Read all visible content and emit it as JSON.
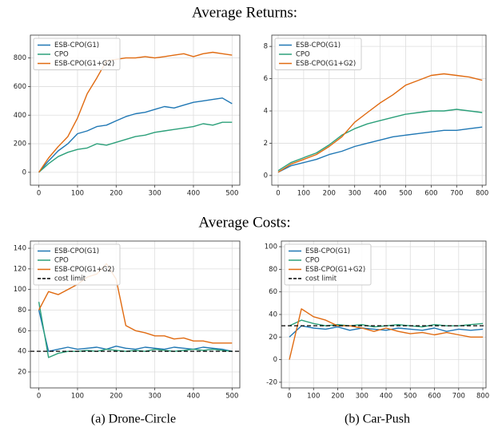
{
  "section_titles": [
    "Average Returns:",
    "Average Costs:"
  ],
  "captions": [
    "(a) Drone-Circle",
    "(b) Car-Push"
  ],
  "chart_data": [
    {
      "type": "line",
      "grid": true,
      "legend": "upper left",
      "x": [
        0,
        25,
        50,
        75,
        100,
        125,
        150,
        175,
        200,
        225,
        250,
        275,
        300,
        325,
        350,
        375,
        400,
        425,
        450,
        475,
        500
      ],
      "xlim": [
        -22,
        520
      ],
      "ylim": [
        -90,
        960
      ],
      "xticks": [
        0,
        100,
        200,
        300,
        400,
        500
      ],
      "yticks": [
        0,
        200,
        400,
        600,
        800
      ],
      "series": [
        {
          "name": "ESB-CPO(G1)",
          "color": "#1f77b4",
          "values": [
            0,
            80,
            150,
            200,
            270,
            290,
            320,
            330,
            360,
            390,
            410,
            420,
            440,
            460,
            450,
            470,
            490,
            500,
            510,
            520,
            480
          ]
        },
        {
          "name": "CPO",
          "color": "#2ca07a",
          "values": [
            0,
            60,
            110,
            140,
            160,
            170,
            200,
            190,
            210,
            230,
            250,
            260,
            280,
            290,
            300,
            310,
            320,
            340,
            330,
            350,
            350
          ]
        },
        {
          "name": "ESB-CPO(G1+G2)",
          "color": "#e06a10",
          "values": [
            0,
            100,
            180,
            250,
            380,
            550,
            660,
            780,
            790,
            800,
            800,
            810,
            800,
            810,
            820,
            830,
            810,
            830,
            840,
            830,
            820
          ]
        }
      ]
    },
    {
      "type": "line",
      "grid": true,
      "legend": "upper left",
      "x": [
        0,
        50,
        100,
        150,
        200,
        250,
        300,
        350,
        400,
        450,
        500,
        550,
        600,
        650,
        700,
        750,
        800
      ],
      "xlim": [
        -25,
        815
      ],
      "ylim": [
        -0.6,
        8.7
      ],
      "xticks": [
        0,
        100,
        200,
        300,
        400,
        500,
        600,
        700,
        800
      ],
      "yticks": [
        0,
        2,
        4,
        6,
        8
      ],
      "series": [
        {
          "name": "ESB-CPO(G1)",
          "color": "#1f77b4",
          "values": [
            0.2,
            0.6,
            0.8,
            1.0,
            1.3,
            1.5,
            1.8,
            2.0,
            2.2,
            2.4,
            2.5,
            2.6,
            2.7,
            2.8,
            2.8,
            2.9,
            3.0
          ]
        },
        {
          "name": "CPO",
          "color": "#2ca07a",
          "values": [
            0.3,
            0.8,
            1.1,
            1.4,
            1.9,
            2.5,
            2.9,
            3.2,
            3.4,
            3.6,
            3.8,
            3.9,
            4.0,
            4.0,
            4.1,
            4.0,
            3.9
          ]
        },
        {
          "name": "ESB-CPO(G1+G2)",
          "color": "#e06a10",
          "values": [
            0.2,
            0.7,
            1.0,
            1.3,
            1.8,
            2.4,
            3.3,
            3.9,
            4.5,
            5.0,
            5.6,
            5.9,
            6.2,
            6.3,
            6.2,
            6.1,
            5.9
          ]
        }
      ]
    },
    {
      "type": "line",
      "grid": true,
      "legend": "upper left",
      "x": [
        0,
        25,
        50,
        75,
        100,
        125,
        150,
        175,
        200,
        225,
        250,
        275,
        300,
        325,
        350,
        375,
        400,
        425,
        450,
        475,
        500
      ],
      "xlim": [
        -22,
        520
      ],
      "ylim": [
        4.5,
        147
      ],
      "xticks": [
        0,
        100,
        200,
        300,
        400,
        500
      ],
      "yticks": [
        20,
        40,
        60,
        80,
        100,
        120,
        140
      ],
      "series": [
        {
          "name": "ESB-CPO(G1)",
          "color": "#1f77b4",
          "values": [
            80,
            40,
            42,
            44,
            42,
            43,
            44,
            42,
            45,
            43,
            42,
            44,
            43,
            42,
            44,
            43,
            42,
            44,
            43,
            42,
            40
          ]
        },
        {
          "name": "CPO",
          "color": "#2ca07a",
          "values": [
            88,
            34,
            38,
            40,
            40,
            41,
            40,
            42,
            41,
            40,
            41,
            40,
            42,
            41,
            40,
            41,
            42,
            41,
            42,
            41,
            40
          ]
        },
        {
          "name": "ESB-CPO(G1+G2)",
          "color": "#e06a10",
          "values": [
            80,
            98,
            95,
            100,
            105,
            112,
            115,
            125,
            110,
            65,
            60,
            58,
            55,
            55,
            52,
            53,
            50,
            50,
            48,
            48,
            48
          ]
        }
      ],
      "hline": {
        "name": "cost limit",
        "color": "#000000",
        "value": 40,
        "dashed": true
      }
    },
    {
      "type": "line",
      "grid": true,
      "legend": "upper left",
      "x": [
        0,
        50,
        100,
        150,
        200,
        250,
        300,
        350,
        400,
        450,
        500,
        550,
        600,
        650,
        700,
        750,
        800
      ],
      "xlim": [
        -33,
        813
      ],
      "ylim": [
        -25,
        105
      ],
      "xticks": [
        0,
        100,
        200,
        300,
        400,
        500,
        600,
        700,
        800
      ],
      "yticks": [
        -20,
        0,
        20,
        40,
        60,
        80,
        100
      ],
      "series": [
        {
          "name": "ESB-CPO(G1)",
          "color": "#1f77b4",
          "values": [
            20,
            30,
            28,
            27,
            29,
            26,
            28,
            27,
            26,
            28,
            27,
            26,
            28,
            25,
            27,
            26,
            27
          ]
        },
        {
          "name": "CPO",
          "color": "#2ca07a",
          "values": [
            30,
            35,
            32,
            30,
            31,
            30,
            31,
            29,
            30,
            31,
            30,
            29,
            31,
            30,
            30,
            31,
            32
          ]
        },
        {
          "name": "ESB-CPO(G1+G2)",
          "color": "#e06a10",
          "values": [
            0,
            45,
            38,
            35,
            30,
            30,
            28,
            25,
            28,
            25,
            23,
            24,
            22,
            24,
            22,
            20,
            20
          ]
        }
      ],
      "hline": {
        "name": "cost limit",
        "color": "#000000",
        "value": 30,
        "dashed": true
      }
    }
  ]
}
